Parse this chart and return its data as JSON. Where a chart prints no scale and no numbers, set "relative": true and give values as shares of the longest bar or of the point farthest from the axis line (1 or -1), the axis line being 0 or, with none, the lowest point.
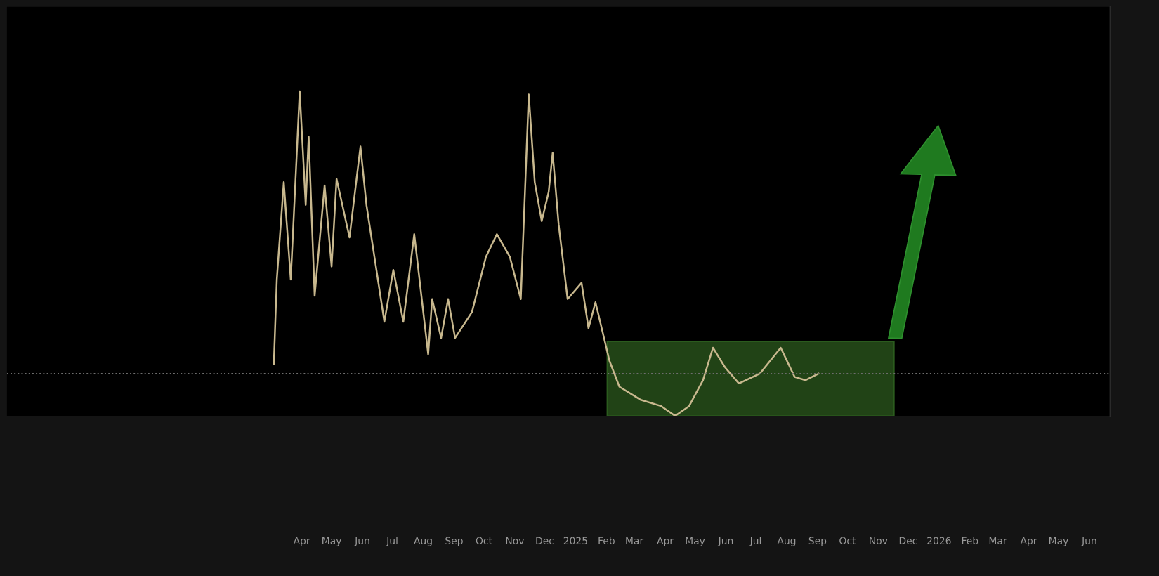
{
  "chart_data": {
    "type": "line",
    "relative": true,
    "color": "#c8b88e",
    "legend": false,
    "grid": false,
    "marker": "none",
    "line_style": "solid",
    "x": [
      "2024-03-04",
      "2024-03-07",
      "2024-03-14",
      "2024-03-21",
      "2024-03-30",
      "2024-04-05",
      "2024-04-08",
      "2024-04-14",
      "2024-04-24",
      "2024-05-01",
      "2024-05-06",
      "2024-05-19",
      "2024-05-30",
      "2024-06-05",
      "2024-06-23",
      "2024-07-02",
      "2024-07-12",
      "2024-07-23",
      "2024-08-06",
      "2024-08-10",
      "2024-08-19",
      "2024-08-26",
      "2024-09-02",
      "2024-09-19",
      "2024-10-03",
      "2024-10-14",
      "2024-10-27",
      "2024-11-07",
      "2024-11-15",
      "2024-11-21",
      "2024-11-28",
      "2024-12-05",
      "2024-12-09",
      "2024-12-15",
      "2024-12-24",
      "2025-01-07",
      "2025-01-14",
      "2025-01-21",
      "2025-02-04",
      "2025-02-14",
      "2025-03-07",
      "2025-03-28",
      "2025-04-11",
      "2025-04-25",
      "2025-05-09",
      "2025-05-19",
      "2025-05-31",
      "2025-06-14",
      "2025-07-05",
      "2025-07-26",
      "2025-08-09",
      "2025-08-20",
      "2025-09-02"
    ],
    "values": [
      0.16,
      0.42,
      0.72,
      0.42,
      1,
      0.65,
      0.86,
      0.37,
      0.71,
      0.46,
      0.73,
      0.55,
      0.83,
      0.65,
      0.29,
      0.45,
      0.29,
      0.56,
      0.19,
      0.36,
      0.24,
      0.36,
      0.24,
      0.32,
      0.49,
      0.56,
      0.49,
      0.36,
      0.99,
      0.72,
      0.6,
      0.69,
      0.81,
      0.59,
      0.36,
      0.41,
      0.27,
      0.35,
      0.17,
      0.09,
      0.05,
      0.03,
      0,
      0.03,
      0.11,
      0.21,
      0.15,
      0.1,
      0.13,
      0.21,
      0.12,
      0.11,
      0.13
    ],
    "ref_lines": [
      {
        "axis": "y",
        "value": 0.13,
        "color": "#6e6e6e",
        "line_style": "dotted"
      }
    ],
    "xlim": [
      "2023-06-10",
      "2026-06-22"
    ],
    "xticks": [
      {
        "value": "2024-04-01",
        "label": "Apr"
      },
      {
        "value": "2024-05-01",
        "label": "May"
      },
      {
        "value": "2024-06-01",
        "label": "Jun"
      },
      {
        "value": "2024-07-01",
        "label": "Jul"
      },
      {
        "value": "2024-08-01",
        "label": "Aug"
      },
      {
        "value": "2024-09-01",
        "label": "Sep"
      },
      {
        "value": "2024-10-01",
        "label": "Oct"
      },
      {
        "value": "2024-11-01",
        "label": "Nov"
      },
      {
        "value": "2024-12-01",
        "label": "Dec"
      },
      {
        "value": "2025-01-01",
        "label": "2025"
      },
      {
        "value": "2025-02-01",
        "label": "Feb"
      },
      {
        "value": "2025-03-01",
        "label": "Mar"
      },
      {
        "value": "2025-04-01",
        "label": "Apr"
      },
      {
        "value": "2025-05-01",
        "label": "May"
      },
      {
        "value": "2025-06-01",
        "label": "Jun"
      },
      {
        "value": "2025-07-01",
        "label": "Jul"
      },
      {
        "value": "2025-08-01",
        "label": "Aug"
      },
      {
        "value": "2025-09-01",
        "label": "Sep"
      },
      {
        "value": "2025-10-01",
        "label": "Oct"
      },
      {
        "value": "2025-11-01",
        "label": "Nov"
      },
      {
        "value": "2025-12-01",
        "label": "Dec"
      },
      {
        "value": "2026-01-01",
        "label": "2026"
      },
      {
        "value": "2026-02-01",
        "label": "Feb"
      },
      {
        "value": "2026-03-01",
        "label": "Mar"
      },
      {
        "value": "2026-04-01",
        "label": "Apr"
      },
      {
        "value": "2026-05-01",
        "label": "May"
      },
      {
        "value": "2026-06-01",
        "label": "Jun"
      }
    ],
    "tick_labels": "x"
  }
}
